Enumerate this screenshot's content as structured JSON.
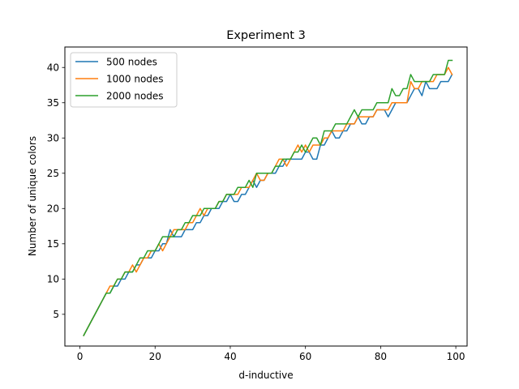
{
  "chart_data": {
    "type": "line",
    "title": "Experiment 3",
    "xlabel": "d-inductive",
    "ylabel": "Number of unique colors",
    "xlim": [
      -4,
      103
    ],
    "ylim": [
      0.5,
      42.9
    ],
    "xticks": [
      0,
      20,
      40,
      60,
      80,
      100
    ],
    "yticks": [
      5,
      10,
      15,
      20,
      25,
      30,
      35,
      40
    ],
    "grid": false,
    "legend": "top-left",
    "x": [
      1,
      2,
      3,
      4,
      5,
      6,
      7,
      8,
      9,
      10,
      11,
      12,
      13,
      14,
      15,
      16,
      17,
      18,
      19,
      20,
      21,
      22,
      23,
      24,
      25,
      26,
      27,
      28,
      29,
      30,
      31,
      32,
      33,
      34,
      35,
      36,
      37,
      38,
      39,
      40,
      41,
      42,
      43,
      44,
      45,
      46,
      47,
      48,
      49,
      50,
      51,
      52,
      53,
      54,
      55,
      56,
      57,
      58,
      59,
      60,
      61,
      62,
      63,
      64,
      65,
      66,
      67,
      68,
      69,
      70,
      71,
      72,
      73,
      74,
      75,
      76,
      77,
      78,
      79,
      80,
      81,
      82,
      83,
      84,
      85,
      86,
      87,
      88,
      89,
      90,
      91,
      92,
      93,
      94,
      95,
      96,
      97,
      98,
      99
    ],
    "series": [
      {
        "name": "500 nodes",
        "color": "#1f77b4",
        "values": [
          2,
          3,
          4,
          5,
          6,
          7,
          8,
          8,
          9,
          9,
          10,
          10,
          11,
          11,
          12,
          12,
          13,
          13,
          13,
          14,
          14,
          15,
          15,
          17,
          16,
          16,
          16,
          17,
          17,
          17,
          18,
          18,
          19,
          19,
          20,
          20,
          20,
          21,
          21,
          22,
          21,
          21,
          22,
          22,
          23,
          24,
          23,
          24,
          24,
          25,
          25,
          25,
          26,
          26,
          27,
          27,
          27,
          27,
          27,
          28,
          28,
          27,
          27,
          29,
          29,
          30,
          31,
          30,
          30,
          31,
          31,
          32,
          32,
          33,
          32,
          32,
          33,
          33,
          34,
          34,
          34,
          33,
          34,
          35,
          35,
          35,
          35,
          36,
          37,
          37,
          36,
          38,
          37,
          37,
          37,
          38,
          38,
          38,
          39
        ]
      },
      {
        "name": "1000 nodes",
        "color": "#ff7f0e",
        "values": [
          2,
          3,
          4,
          5,
          6,
          7,
          8,
          9,
          9,
          10,
          10,
          11,
          11,
          12,
          11,
          12,
          13,
          13,
          14,
          14,
          15,
          14,
          15,
          16,
          17,
          17,
          17,
          17,
          18,
          18,
          19,
          20,
          19,
          20,
          20,
          20,
          21,
          21,
          22,
          22,
          22,
          22,
          23,
          23,
          23,
          24,
          25,
          24,
          24,
          25,
          25,
          26,
          27,
          27,
          26,
          27,
          28,
          29,
          28,
          29,
          28,
          29,
          29,
          29,
          30,
          30,
          31,
          31,
          31,
          31,
          32,
          32,
          32,
          33,
          33,
          33,
          33,
          33,
          34,
          34,
          34,
          34,
          35,
          35,
          35,
          35,
          35,
          38,
          37,
          37,
          38,
          38,
          38,
          38,
          39,
          39,
          39,
          40,
          39
        ]
      },
      {
        "name": "2000 nodes",
        "color": "#2ca02c",
        "values": [
          2,
          3,
          4,
          5,
          6,
          7,
          8,
          8,
          9,
          10,
          10,
          11,
          11,
          11,
          12,
          13,
          13,
          14,
          14,
          14,
          15,
          16,
          16,
          16,
          16,
          17,
          17,
          18,
          18,
          19,
          19,
          19,
          20,
          20,
          20,
          20,
          21,
          21,
          22,
          22,
          22,
          23,
          23,
          23,
          24,
          23,
          25,
          25,
          25,
          25,
          25,
          26,
          26,
          27,
          27,
          27,
          28,
          28,
          29,
          28,
          29,
          30,
          30,
          29,
          31,
          31,
          31,
          32,
          32,
          32,
          32,
          33,
          34,
          33,
          34,
          34,
          34,
          34,
          35,
          35,
          35,
          35,
          37,
          36,
          36,
          37,
          37,
          39,
          38,
          38,
          38,
          38,
          38,
          39,
          39,
          39,
          39,
          41,
          41
        ]
      }
    ]
  }
}
